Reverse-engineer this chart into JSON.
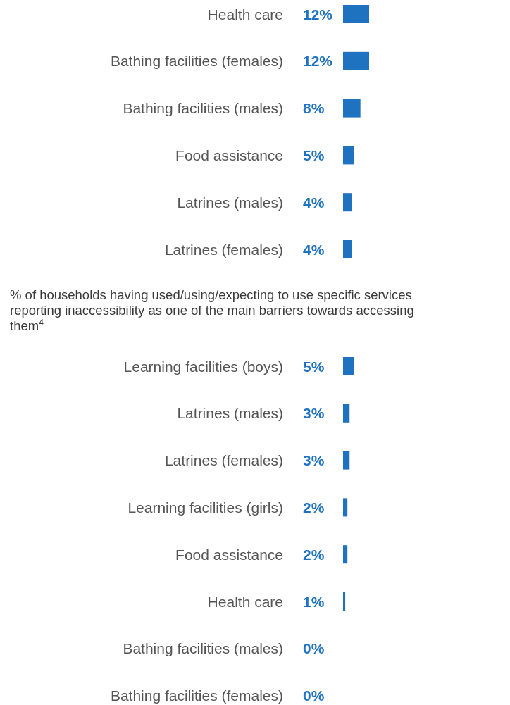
{
  "chart_data": [
    {
      "type": "bar",
      "orientation": "horizontal",
      "categories": [
        "Health care",
        "Bathing facilities (females)",
        "Bathing facilities (males)",
        "Food assistance",
        "Latrines (males)",
        "Latrines (females)"
      ],
      "values": [
        12,
        12,
        8,
        5,
        4,
        4
      ],
      "value_labels": [
        "12%",
        "12%",
        "8%",
        "5%",
        "4%",
        "4%"
      ],
      "color": "#1f72bf"
    },
    {
      "type": "bar",
      "orientation": "horizontal",
      "title": "% of households having used/using/expecting to use specific services reporting inaccessibility as one of the main barriers towards accessing them$^{4}$",
      "categories": [
        "Learning facilities (boys)",
        "Latrines (males)",
        "Latrines (females)",
        "Learning facilities (girls)",
        "Food assistance",
        "Health care",
        "Bathing facilities (males)",
        "Bathing facilities (females)"
      ],
      "values": [
        5,
        3,
        3,
        2,
        2,
        1,
        0,
        0
      ],
      "value_labels": [
        "5%",
        "3%",
        "3%",
        "2%",
        "2%",
        "1%",
        "0%",
        "0%"
      ],
      "color": "#1f72bf"
    }
  ]
}
